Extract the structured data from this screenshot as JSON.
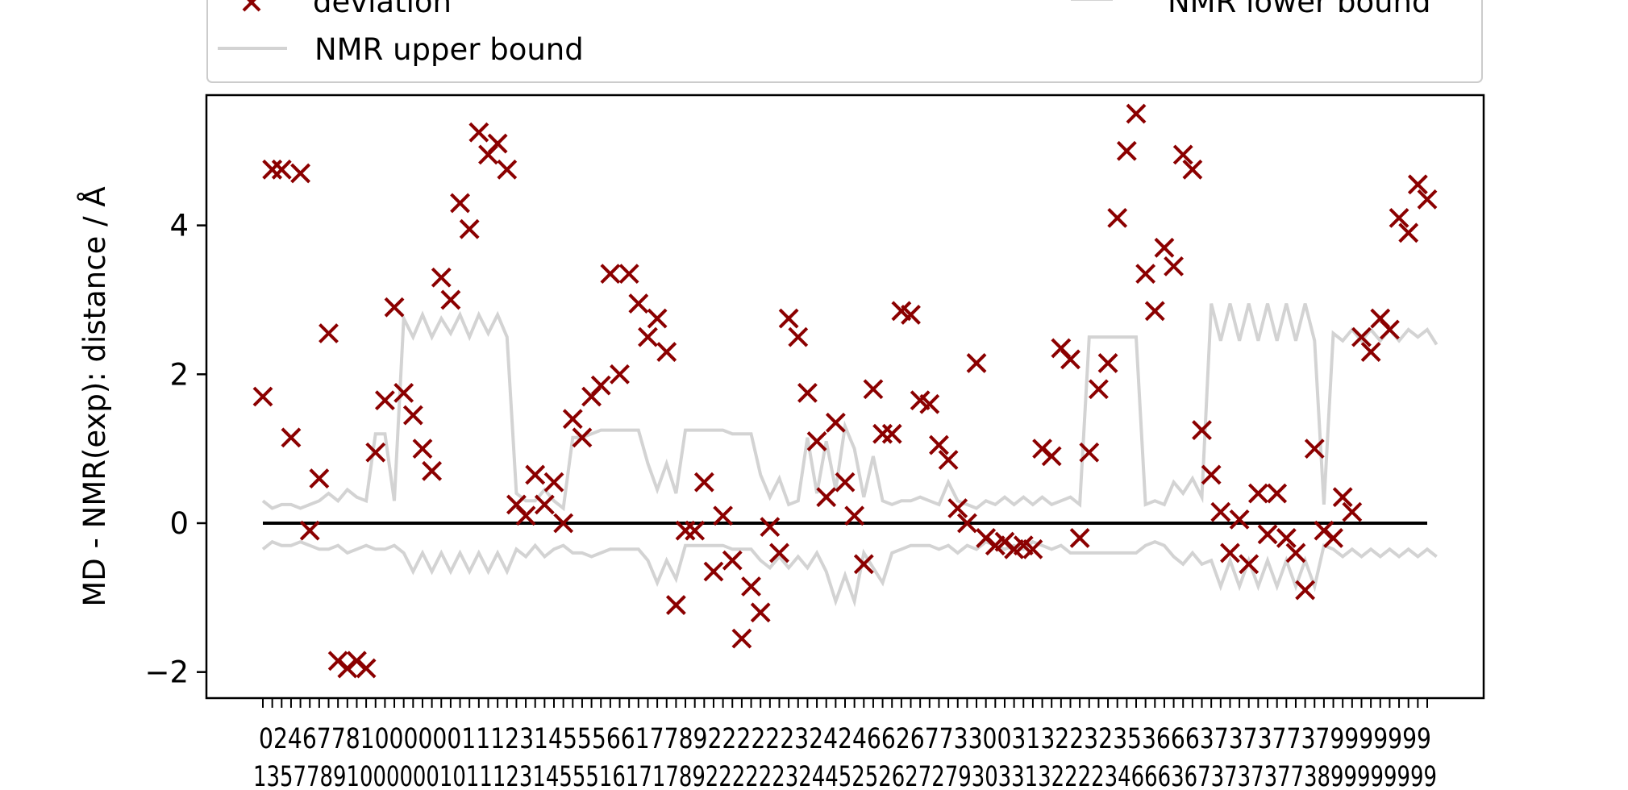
{
  "chart_data": {
    "type": "scatter",
    "ylabel": "MD - NMR(exp): distance / Å",
    "ylim": [
      -2.35,
      5.75
    ],
    "yticks": [
      -2,
      0,
      2,
      4
    ],
    "xtick_rows": [
      "024677810000001112314555661778922222232424662677330031322323536663737377379999999",
      "13577891000000101112314555161717892222223244525262727930331322223466636737373773899999999"
    ],
    "grid": false,
    "legend": {
      "position": "top",
      "entries": [
        {
          "label": "deviation",
          "marker": "x",
          "color": "#8b0000"
        },
        {
          "label": "NMR lower bound",
          "marker": "line",
          "color": "#d3d3d3"
        },
        {
          "label": "NMR upper bound",
          "marker": "line",
          "color": "#d3d3d3"
        }
      ]
    },
    "zero_line": {
      "y": 0,
      "color": "#000000"
    },
    "colors": {
      "deviation": "#8b0000",
      "bounds": "#d3d3d3"
    },
    "series": [
      {
        "name": "deviation",
        "values": [
          1.7,
          4.75,
          4.75,
          1.15,
          4.7,
          -0.1,
          0.6,
          2.55,
          -1.85,
          -1.95,
          -1.85,
          -1.95,
          0.95,
          1.65,
          2.9,
          1.75,
          1.45,
          1.0,
          0.7,
          3.3,
          3.0,
          4.3,
          3.95,
          5.25,
          4.95,
          5.1,
          4.75,
          0.25,
          0.1,
          0.65,
          0.25,
          0.55,
          0.0,
          1.4,
          1.15,
          1.7,
          1.85,
          3.35,
          2.0,
          3.35,
          2.95,
          2.5,
          2.75,
          2.3,
          -1.1,
          -0.1,
          -0.1,
          0.55,
          -0.65,
          0.1,
          -0.5,
          -1.55,
          -0.85,
          -1.2,
          -0.05,
          -0.4,
          2.75,
          2.5,
          1.75,
          1.1,
          0.35,
          1.35,
          0.55,
          0.1,
          -0.55,
          1.8,
          1.2,
          1.2,
          2.85,
          2.8,
          1.65,
          1.6,
          1.05,
          0.85,
          0.2,
          0.0,
          2.15,
          -0.2,
          -0.3,
          -0.25,
          -0.35,
          -0.3,
          -0.35,
          1.0,
          0.9,
          2.35,
          2.2,
          -0.2,
          0.95,
          1.8,
          2.15,
          4.1,
          5.0,
          5.5,
          3.35,
          2.85,
          3.7,
          3.45,
          4.95,
          4.75,
          1.25,
          0.65,
          0.15,
          -0.4,
          0.05,
          -0.55,
          0.4,
          -0.15,
          0.4,
          -0.2,
          -0.4,
          -0.9,
          1.0,
          -0.1,
          -0.2,
          0.35,
          0.15,
          2.5,
          2.3,
          2.75,
          2.6,
          4.1,
          3.9,
          4.55,
          4.35
        ]
      },
      {
        "name": "NMR upper bound",
        "values": [
          0.3,
          0.2,
          0.25,
          0.25,
          0.2,
          0.25,
          0.3,
          0.4,
          0.3,
          0.45,
          0.35,
          0.3,
          1.2,
          1.2,
          0.3,
          2.75,
          2.5,
          2.8,
          2.5,
          2.75,
          2.55,
          2.8,
          2.5,
          2.8,
          2.55,
          2.8,
          2.5,
          0.4,
          0.3,
          0.3,
          0.45,
          0.3,
          0.2,
          1.15,
          1.15,
          1.2,
          1.25,
          1.25,
          1.25,
          1.25,
          1.25,
          0.8,
          0.45,
          0.8,
          0.4,
          1.25,
          1.25,
          1.25,
          1.25,
          1.25,
          1.2,
          1.2,
          1.2,
          0.65,
          0.35,
          0.6,
          0.25,
          0.3,
          1.15,
          0.4,
          1.1,
          0.45,
          1.3,
          1.0,
          0.35,
          0.9,
          0.3,
          0.25,
          0.3,
          0.3,
          0.35,
          0.3,
          0.25,
          0.55,
          0.3,
          0.25,
          0.2,
          0.3,
          0.25,
          0.35,
          0.25,
          0.35,
          0.25,
          0.35,
          0.25,
          0.3,
          0.35,
          0.25,
          2.5,
          2.5,
          2.5,
          2.5,
          2.5,
          2.5,
          0.25,
          0.3,
          0.25,
          0.55,
          0.4,
          0.6,
          0.35,
          2.95,
          2.45,
          2.95,
          2.45,
          2.95,
          2.45,
          2.95,
          2.45,
          2.95,
          2.45,
          2.95,
          2.45,
          0.25,
          2.55,
          2.45,
          2.6,
          2.45,
          2.6,
          2.45,
          2.6,
          2.45,
          2.6,
          2.5,
          2.6,
          2.4
        ]
      },
      {
        "name": "NMR lower bound",
        "values": [
          -0.35,
          -0.25,
          -0.3,
          -0.3,
          -0.25,
          -0.3,
          -0.35,
          -0.35,
          -0.3,
          -0.4,
          -0.35,
          -0.3,
          -0.35,
          -0.35,
          -0.3,
          -0.4,
          -0.65,
          -0.4,
          -0.65,
          -0.4,
          -0.65,
          -0.4,
          -0.65,
          -0.4,
          -0.65,
          -0.4,
          -0.65,
          -0.35,
          -0.45,
          -0.3,
          -0.45,
          -0.35,
          -0.3,
          -0.4,
          -0.4,
          -0.45,
          -0.4,
          -0.35,
          -0.35,
          -0.35,
          -0.35,
          -0.5,
          -0.8,
          -0.5,
          -0.75,
          -0.3,
          -0.3,
          -0.3,
          -0.3,
          -0.3,
          -0.35,
          -0.35,
          -0.35,
          -0.5,
          -0.6,
          -0.45,
          -0.6,
          -0.45,
          -0.6,
          -0.4,
          -0.65,
          -1.05,
          -0.7,
          -1.05,
          -0.4,
          -0.6,
          -0.8,
          -0.4,
          -0.35,
          -0.3,
          -0.3,
          -0.3,
          -0.35,
          -0.3,
          -0.4,
          -0.3,
          -0.35,
          -0.25,
          -0.3,
          -0.35,
          -0.3,
          -0.35,
          -0.25,
          -0.3,
          -0.35,
          -0.3,
          -0.4,
          -0.4,
          -0.4,
          -0.4,
          -0.4,
          -0.4,
          -0.4,
          -0.4,
          -0.3,
          -0.25,
          -0.3,
          -0.45,
          -0.55,
          -0.4,
          -0.55,
          -0.5,
          -0.85,
          -0.5,
          -0.85,
          -0.5,
          -0.85,
          -0.5,
          -0.85,
          -0.5,
          -0.85,
          -0.5,
          -0.85,
          -0.3,
          -0.35,
          -0.45,
          -0.35,
          -0.45,
          -0.35,
          -0.45,
          -0.35,
          -0.45,
          -0.35,
          -0.45,
          -0.35,
          -0.45
        ]
      }
    ]
  }
}
